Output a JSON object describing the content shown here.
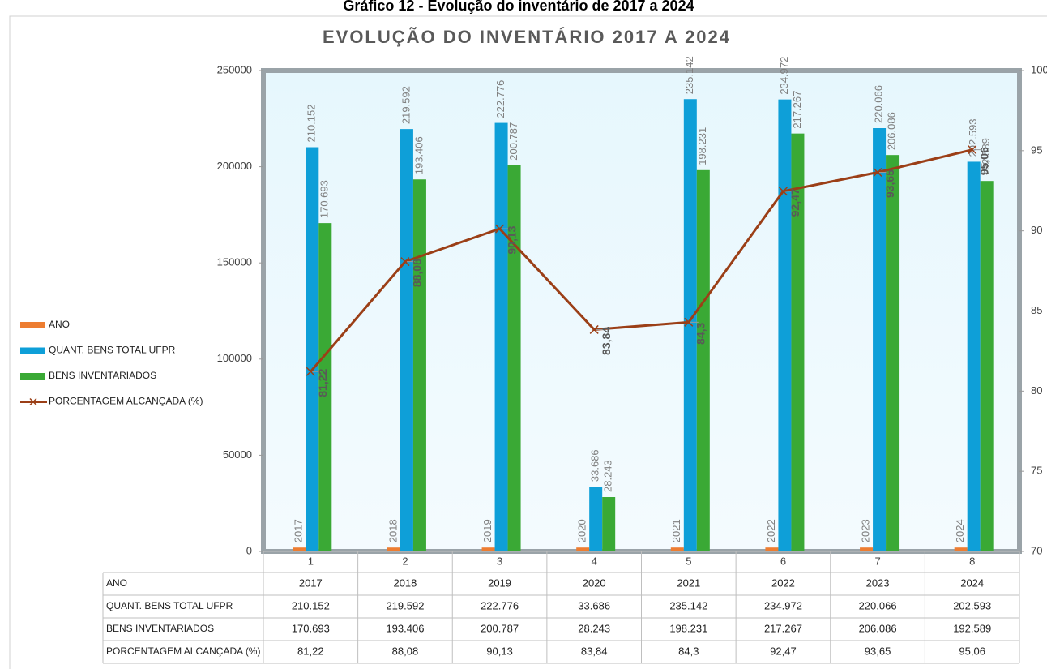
{
  "caption": "Gráfico 12 - Evolução do inventário de 2017 a 2024",
  "chart_data": {
    "type": "bar",
    "title": "EVOLUÇÃO DO INVENTÁRIO 2017 A 2024",
    "categories": [
      "1",
      "2",
      "3",
      "4",
      "5",
      "6",
      "7",
      "8"
    ],
    "series": [
      {
        "name": "ANO",
        "color": "#ed7d31",
        "values": [
          2017,
          2018,
          2019,
          2020,
          2021,
          2022,
          2023,
          2024
        ]
      },
      {
        "name": "QUANT. BENS TOTAL UFPR",
        "color": "#0e9fd8",
        "values": [
          210152,
          219592,
          222776,
          33686,
          235142,
          234972,
          220066,
          202593
        ],
        "value_labels": [
          "210.152",
          "219.592",
          "222.776",
          "33.686",
          "235.142",
          "234.972",
          "220.066",
          "202.593"
        ]
      },
      {
        "name": "BENS INVENTARIADOS",
        "color": "#3aa935",
        "values": [
          170693,
          193406,
          200787,
          28243,
          198231,
          217267,
          206086,
          192589
        ],
        "value_labels": [
          "170.693",
          "193.406",
          "200.787",
          "28.243",
          "198.231",
          "217.267",
          "206.086",
          "192.589"
        ]
      },
      {
        "name": "PORCENTAGEM ALCANÇADA (%)",
        "color": "#9b3f17",
        "type": "line",
        "axis": "y2",
        "values": [
          81.22,
          88.08,
          90.13,
          83.84,
          84.3,
          92.47,
          93.65,
          95.06
        ],
        "value_labels": [
          "81,22",
          "88,08",
          "90,13",
          "83,84",
          "84,3",
          "92,47",
          "93,65",
          "95,06"
        ]
      }
    ],
    "ylim": [
      0,
      250000
    ],
    "yticks": [
      0,
      50000,
      100000,
      150000,
      200000,
      250000
    ],
    "y2lim": [
      70,
      100
    ],
    "y2ticks": [
      70,
      75,
      80,
      85,
      90,
      95,
      100
    ],
    "legend": "left",
    "data_table": true
  }
}
